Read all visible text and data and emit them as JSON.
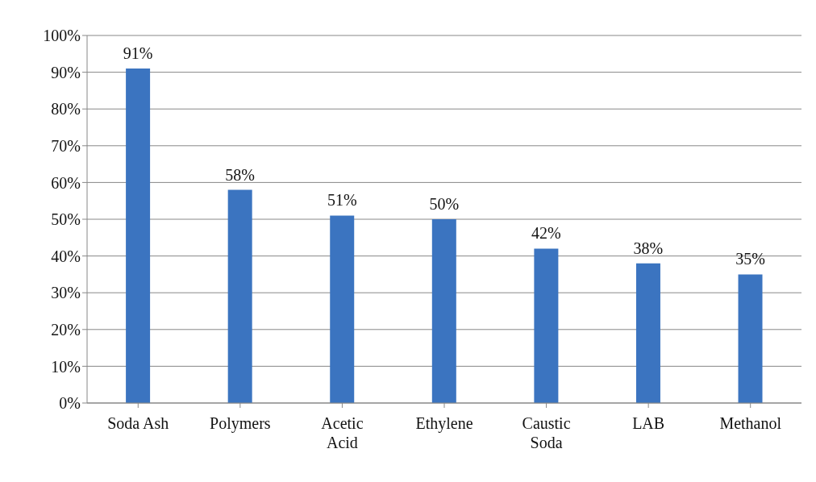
{
  "chart_data": {
    "type": "bar",
    "categories": [
      "Soda Ash",
      "Polymers",
      "Acetic Acid",
      "Ethylene",
      "Caustic Soda",
      "LAB",
      "Methanol"
    ],
    "values": [
      91,
      58,
      51,
      50,
      42,
      38,
      35
    ],
    "value_labels": [
      "91%",
      "58%",
      "51%",
      "50%",
      "42%",
      "38%",
      "35%"
    ],
    "color": "#3b74c0",
    "ylim": [
      0,
      100
    ],
    "yticks": [
      {
        "value": 0,
        "label": "0%"
      },
      {
        "value": 10,
        "label": "10%"
      },
      {
        "value": 20,
        "label": "20%"
      },
      {
        "value": 30,
        "label": "30%"
      },
      {
        "value": 40,
        "label": "40%"
      },
      {
        "value": 50,
        "label": "50%"
      },
      {
        "value": 60,
        "label": "60%"
      },
      {
        "value": 70,
        "label": "70%"
      },
      {
        "value": 80,
        "label": "80%"
      },
      {
        "value": 90,
        "label": "90%"
      },
      {
        "value": 100,
        "label": "100%"
      }
    ],
    "grid": "y"
  }
}
